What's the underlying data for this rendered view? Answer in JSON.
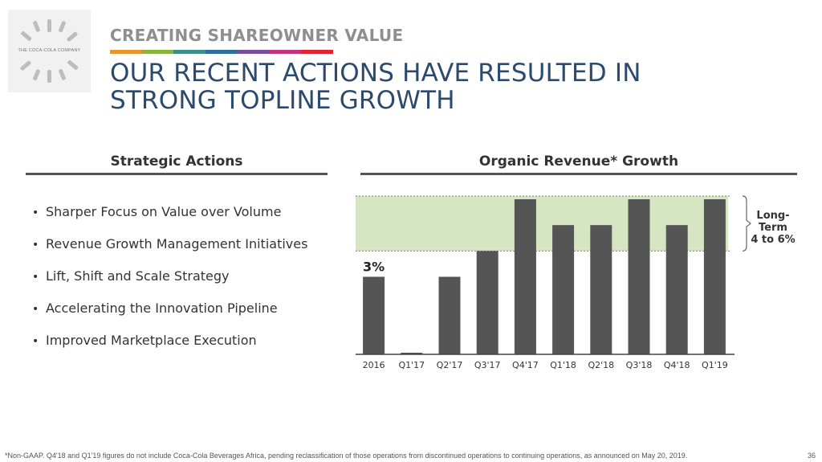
{
  "logo": {
    "text": "THE COCA-COLA COMPANY",
    "icon": "bottle-burst-icon"
  },
  "header": {
    "eyebrow": "CREATING SHAREOWNER VALUE",
    "stripe_colors": [
      "#e8952f",
      "#8db33f",
      "#3d8f8a",
      "#2f6f9e",
      "#7a4f9a",
      "#c2347e",
      "#e0242f"
    ],
    "title_line1": "OUR RECENT ACTIONS HAVE RESULTED IN",
    "title_line2": "STRONG TOPLINE GROWTH"
  },
  "left": {
    "heading": "Strategic Actions",
    "bullets": [
      "Sharper Focus on Value over Volume",
      "Revenue Growth Management Initiatives",
      "Lift, Shift and Scale Strategy",
      "Accelerating the Innovation Pipeline",
      "Improved Marketplace Execution"
    ]
  },
  "right": {
    "heading": "Organic Revenue* Growth"
  },
  "chart_data": {
    "type": "bar",
    "categories": [
      "2016",
      "Q1'17",
      "Q2'17",
      "Q3'17",
      "Q4'17",
      "Q1'18",
      "Q2'18",
      "Q3'18",
      "Q4'18",
      "Q1'19"
    ],
    "values": [
      3,
      0,
      3,
      4,
      6,
      5,
      5,
      6,
      5,
      6
    ],
    "data_label": "3%",
    "band": {
      "low": 4,
      "high": 6,
      "label_lines": [
        "Long-",
        "Term",
        "4 to 6%"
      ],
      "color": "#d6e6c3"
    },
    "bar_color": "#555555",
    "ylim": [
      0,
      6
    ]
  },
  "footer": {
    "footnote": "*Non-GAAP. Q4'18 and Q1'19 figures do not include Coca-Cola Beverages Africa, pending reclassification of those operations from discontinued operations to continuing operations, as announced on May 20, 2019.",
    "page_number": "36"
  }
}
